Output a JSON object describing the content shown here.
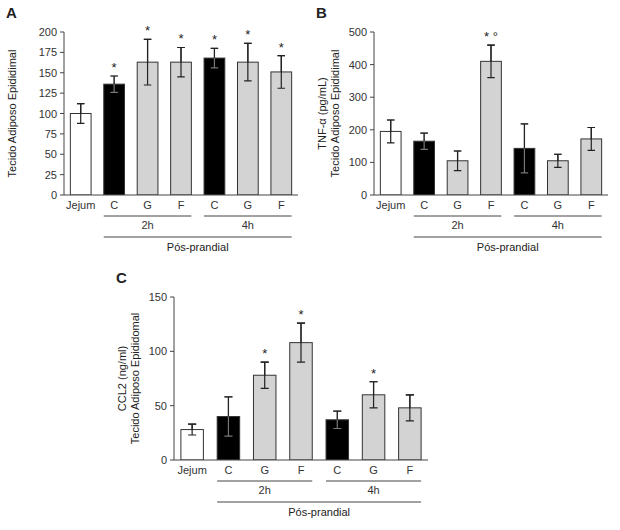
{
  "chart_data": [
    {
      "type": "bar",
      "title": "A",
      "ylabel": "Tecido Adiposo Epididimal",
      "xlabel": "Pós-prandial",
      "group_labels": [
        "2h",
        "4h"
      ],
      "categories": [
        "Jejum",
        "C",
        "G",
        "F",
        "C",
        "G",
        "F"
      ],
      "values": [
        100,
        136,
        163,
        163,
        168,
        163,
        151
      ],
      "errors": [
        12,
        10,
        28,
        18,
        12,
        23,
        20
      ],
      "annotations": [
        null,
        "*",
        "*",
        "*",
        "*",
        "*",
        "*"
      ],
      "colors": [
        "white",
        "black",
        "lightgray",
        "lightgray",
        "black",
        "lightgray",
        "lightgray"
      ],
      "ylim": [
        0,
        200
      ],
      "yticks": [
        0,
        25,
        50,
        75,
        100,
        125,
        150,
        175,
        200
      ],
      "grid": false
    },
    {
      "type": "bar",
      "title": "B",
      "ylabel": "TNF-α (pg/mL)\nTecido Adiposo Epididimal",
      "xlabel": "Pós-prandial",
      "group_labels": [
        "2h",
        "4h"
      ],
      "categories": [
        "Jejum",
        "C",
        "G",
        "F",
        "C",
        "G",
        "F"
      ],
      "values": [
        195,
        165,
        105,
        410,
        143,
        105,
        172
      ],
      "errors": [
        35,
        25,
        30,
        50,
        75,
        20,
        35
      ],
      "annotations": [
        null,
        null,
        null,
        "* °",
        null,
        null,
        null
      ],
      "colors": [
        "white",
        "black",
        "lightgray",
        "lightgray",
        "black",
        "lightgray",
        "lightgray"
      ],
      "ylim": [
        0,
        500
      ],
      "yticks": [
        0,
        100,
        200,
        300,
        400,
        500
      ],
      "grid": false
    },
    {
      "type": "bar",
      "title": "C",
      "ylabel": "CCL2 (ng/ml)\nTecido Adiposo Epididomal",
      "xlabel": "Pós-prandial",
      "group_labels": [
        "2h",
        "4h"
      ],
      "categories": [
        "Jejum",
        "C",
        "G",
        "F",
        "C",
        "G",
        "F"
      ],
      "values": [
        28,
        40,
        78,
        108,
        37,
        60,
        48
      ],
      "errors": [
        5,
        18,
        12,
        18,
        8,
        12,
        12
      ],
      "annotations": [
        null,
        null,
        "*",
        "*",
        null,
        "*",
        null
      ],
      "colors": [
        "white",
        "black",
        "lightgray",
        "lightgray",
        "black",
        "lightgray",
        "lightgray"
      ],
      "ylim": [
        0,
        150
      ],
      "yticks": [
        0,
        50,
        100,
        150
      ],
      "grid": false
    }
  ]
}
